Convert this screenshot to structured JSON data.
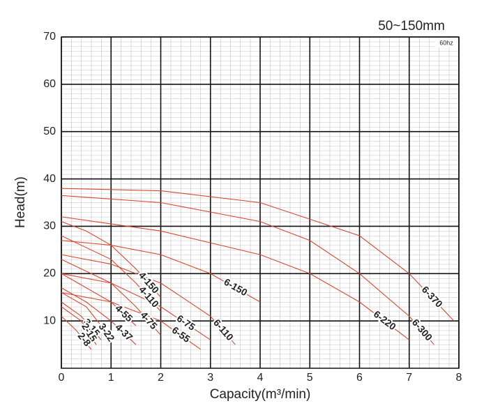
{
  "chart_data": {
    "type": "line",
    "title": "50~150mm",
    "note": "60hz",
    "xlabel": "Capacity(m³/min)",
    "ylabel": "Head(m)",
    "xlim": [
      0,
      8
    ],
    "xticks": [
      0,
      1,
      2,
      3,
      4,
      5,
      6,
      7,
      8
    ],
    "ylim": [
      0,
      70
    ],
    "yticks": [
      10,
      20,
      30,
      40,
      50,
      60,
      70
    ],
    "grid": true,
    "series": [
      {
        "name": "6-370",
        "color": "#d9462f",
        "x": [
          0,
          2,
          4,
          6,
          7,
          7.9
        ],
        "values": [
          38,
          37.5,
          35,
          28,
          20,
          10
        ]
      },
      {
        "name": "6-300",
        "color": "#d9462f",
        "x": [
          0,
          2,
          4,
          5,
          6,
          7,
          7.5
        ],
        "values": [
          36.5,
          35,
          31,
          27,
          20,
          11,
          5
        ]
      },
      {
        "name": "6-220",
        "color": "#d9462f",
        "x": [
          0,
          2,
          4,
          5,
          6,
          7
        ],
        "values": [
          32,
          29,
          24,
          20,
          14,
          6
        ]
      },
      {
        "name": "6-150",
        "color": "#d9462f",
        "x": [
          0,
          1,
          2,
          3,
          4
        ],
        "values": [
          27,
          26,
          24,
          20,
          14
        ]
      },
      {
        "name": "6-110",
        "color": "#d9462f",
        "x": [
          0,
          1,
          2,
          3,
          3.5
        ],
        "values": [
          24,
          22,
          18,
          11,
          5
        ]
      },
      {
        "name": "6-75",
        "color": "#d9462f",
        "x": [
          0,
          1,
          2,
          3
        ],
        "values": [
          20,
          18,
          13,
          6
        ]
      },
      {
        "name": "6-55",
        "color": "#d9462f",
        "x": [
          0,
          1,
          2,
          2.8
        ],
        "values": [
          16,
          14,
          10,
          4
        ]
      },
      {
        "name": "4-150",
        "color": "#d9462f",
        "x": [
          0,
          0.5,
          1,
          1.5,
          2
        ],
        "values": [
          31,
          29,
          26,
          21,
          15
        ]
      },
      {
        "name": "4-110",
        "color": "#d9462f",
        "x": [
          0,
          1,
          1.5,
          2
        ],
        "values": [
          28,
          23,
          18,
          12
        ]
      },
      {
        "name": "4-75",
        "color": "#d9462f",
        "x": [
          0,
          1,
          1.5,
          2
        ],
        "values": [
          23,
          18,
          13,
          7
        ]
      },
      {
        "name": "4-55",
        "color": "#d9462f",
        "x": [
          0,
          0.5,
          1,
          1.5
        ],
        "values": [
          20,
          17,
          14,
          9
        ]
      },
      {
        "name": "4-37",
        "color": "#d9462f",
        "x": [
          0,
          0.5,
          1,
          1.5
        ],
        "values": [
          17,
          14,
          10,
          5
        ]
      },
      {
        "name": "3-22",
        "color": "#d9462f",
        "x": [
          0,
          0.5,
          0.8,
          1
        ],
        "values": [
          16,
          13,
          9,
          6
        ]
      },
      {
        "name": "3-15",
        "color": "#d9462f",
        "x": [
          0,
          0.4,
          0.8
        ],
        "values": [
          14,
          11,
          6
        ]
      },
      {
        "name": "2-15",
        "color": "#d9462f",
        "x": [
          0,
          0.4,
          0.7
        ],
        "values": [
          13,
          10,
          5
        ]
      },
      {
        "name": "2-8",
        "color": "#d9462f",
        "x": [
          0,
          0.3,
          0.6
        ],
        "values": [
          11,
          8,
          4
        ]
      }
    ]
  }
}
